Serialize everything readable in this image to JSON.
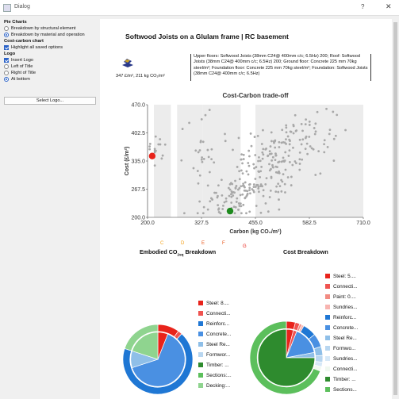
{
  "window": {
    "title": "Dialog",
    "help": "?",
    "close": "✕"
  },
  "sidebar": {
    "pie_charts_heading": "Pie Charts",
    "pie_options": [
      {
        "label": "Breakdown by structural element",
        "selected": false
      },
      {
        "label": "Breakdown by material and operation",
        "selected": true
      }
    ],
    "cost_carbon_heading": "Cost-carbon chart",
    "highlight_label": "Highlight all saved options",
    "logo_heading": "Logo",
    "insert_logo_label": "Insert Logo",
    "logo_position_options": [
      {
        "label": "Left of Title",
        "selected": false
      },
      {
        "label": "Right of Title",
        "selected": false
      },
      {
        "label": "At bottom",
        "selected": true
      }
    ],
    "select_logo_button": "Select Logo..."
  },
  "report": {
    "title": "Softwood Joists on a Glulam frame | RC basement",
    "rates": "347 £/m², 211 kg CO₂/m²",
    "spec_text": "Upper floors: Softwood Joists (38mm C24@ 400mm c/c; 6.5Hz) 200; Roof: Softwood Joists (38mm C24@ 400mm c/c; 6.5Hz) 200; Ground floor: Concrete 225 mm 70kg steel/m²; Foundation floor: Concrete 225 mm 70kg steel/m²; Foundation: Softwood Joists (38mm C24@ 400mm c/c; 6.5Hz)"
  },
  "chart_data": {
    "type": "scatter",
    "title": "Cost-Carbon trade-off",
    "xlabel": "Carbon (kg CO₂/m²)",
    "ylabel": "Cost (£/m²)",
    "xlim": [
      200,
      710
    ],
    "ylim": [
      200,
      470
    ],
    "x_ticks": [
      "200.0",
      "327.5",
      "455.0",
      "582.5",
      "710.0"
    ],
    "y_ticks": [
      "200.0",
      "267.5",
      "335.0",
      "402.5",
      "470.0"
    ],
    "bands": [
      [
        215,
        255
      ],
      [
        270,
        330
      ],
      [
        330,
        420
      ],
      [
        455,
        710
      ]
    ],
    "highlight_red": {
      "x": 211,
      "y": 347,
      "color": "#e8231b"
    },
    "highlight_green": {
      "x": 395,
      "y": 215,
      "color": "#1e8a1e"
    },
    "category_letters": [
      {
        "text": "C",
        "color": "#f5a623"
      },
      {
        "text": "D",
        "color": "#f39c12"
      },
      {
        "text": "E",
        "color": "#e8571b"
      },
      {
        "text": "F",
        "color": "#e8571b"
      },
      {
        "text": "G",
        "color": "#e8231b"
      }
    ]
  },
  "pies": {
    "embodied": {
      "title_main": "Embodied CO",
      "title_sub": "2eq",
      "title_end": " Breakdown",
      "legend": [
        {
          "label": "Steel: 8....",
          "color": "#e8231b"
        },
        {
          "label": "Connecti...",
          "color": "#ef5350"
        },
        {
          "label": "Reinforc...",
          "color": "#1f77d4"
        },
        {
          "label": "Concrete...",
          "color": "#4a90e2"
        },
        {
          "label": "Steel Re...",
          "color": "#8fbfe8"
        },
        {
          "label": "Formwor...",
          "color": "#b8d6f0"
        },
        {
          "label": "Timber: ...",
          "color": "#2e8b2e"
        },
        {
          "label": "Sections:...",
          "color": "#5cbf5c"
        },
        {
          "label": "Decking:...",
          "color": "#8fd48f"
        }
      ],
      "outer": [
        0.1,
        0.02,
        0.68,
        0.0,
        0.0,
        0.0,
        0.0,
        0.0,
        0.2
      ],
      "inner": [
        0.06,
        0.0,
        0.0,
        0.64,
        0.1,
        0.0,
        0.0,
        0.0,
        0.2
      ]
    },
    "cost": {
      "title": "Cost Breakdown",
      "legend": [
        {
          "label": "Steel: 5....",
          "color": "#e8231b"
        },
        {
          "label": "Connecti...",
          "color": "#ef5350"
        },
        {
          "label": "Paint: 0....",
          "color": "#f28b82"
        },
        {
          "label": "Sundries...",
          "color": "#f8b4b0"
        },
        {
          "label": "Reinforc...",
          "color": "#1f77d4"
        },
        {
          "label": "Concrete...",
          "color": "#4a90e2"
        },
        {
          "label": "Steel Re...",
          "color": "#8fbfe8"
        },
        {
          "label": "Formwo...",
          "color": "#b8d6f0"
        },
        {
          "label": "Sundries...",
          "color": "#d6e8f7"
        },
        {
          "label": "Connecti...",
          "color": "#f0f8f0"
        },
        {
          "label": "Timber: ...",
          "color": "#2e8b2e"
        },
        {
          "label": "Sections...",
          "color": "#5cbf5c"
        }
      ],
      "outer": [
        0.04,
        0.02,
        0.01,
        0.01,
        0.06,
        0.06,
        0.04,
        0.03,
        0.02,
        0.02,
        0.0,
        0.69
      ],
      "inner": [
        0.04,
        0.02,
        0.0,
        0.0,
        0.0,
        0.16,
        0.03,
        0.0,
        0.0,
        0.0,
        0.75,
        0.0
      ]
    }
  },
  "colors": {
    "accent": "#2a62c8",
    "scatter_point": "#a8a8a8",
    "band": "#ececec"
  }
}
